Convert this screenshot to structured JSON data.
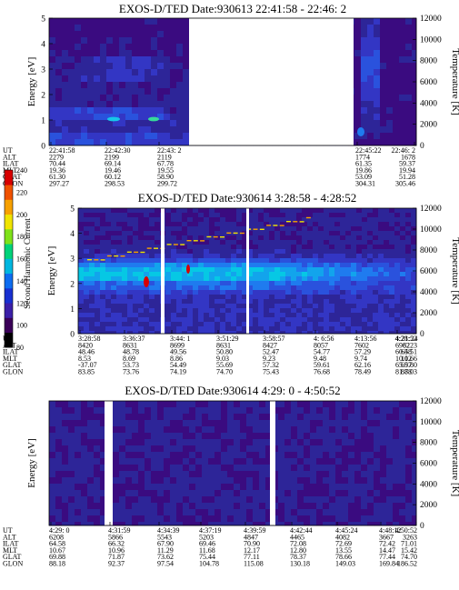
{
  "colorbar": {
    "label": "Second Harmonic Current",
    "ticks": [
      "240",
      "220",
      "200",
      "180",
      "160",
      "140",
      "120",
      "100",
      "80"
    ],
    "colors": [
      "#000000",
      "#3a0058",
      "#3b1fa8",
      "#1830d0",
      "#0d6cf0",
      "#00b7e0",
      "#00d37a",
      "#7fe21a",
      "#f0e400",
      "#f7a100",
      "#f05200",
      "#d80000"
    ]
  },
  "panels": [
    {
      "title": "EXOS-D/TED   Date:930613  22:41:58 - 22:46: 2",
      "ylabel": "Energy [eV]",
      "y2label": "Temperature [K]",
      "yticks": [
        "0",
        "1",
        "2",
        "3",
        "4",
        "5"
      ],
      "y2ticks": [
        "0",
        "2000",
        "4000",
        "6000",
        "8000",
        "10000",
        "12000"
      ],
      "row_labels": [
        "UT",
        "ALT",
        "ILAT",
        "MLT",
        "GLAT",
        "GLON"
      ],
      "columns": [
        {
          "ut": "22:41:58",
          "vals": [
            "2279",
            "70.44",
            "19.36",
            "61.30",
            "297.27"
          ]
        },
        {
          "ut": "22:42:30",
          "vals": [
            "2199",
            "69.14",
            "19.46",
            "60.12",
            "298.53"
          ]
        },
        {
          "ut": "22:43: 2",
          "vals": [
            "2119",
            "67.78",
            "19.55",
            "58.90",
            "299.72"
          ]
        },
        {
          "ut": "22:45:22",
          "vals": [
            "1774",
            "61.35",
            "19.86",
            "53.09",
            "304.31"
          ]
        },
        {
          "ut": "22:46: 2",
          "vals": [
            "1678",
            "59.37",
            "19.94",
            "51.28",
            "305.46"
          ]
        }
      ]
    },
    {
      "title": "EXOS-D/TED   Date:930614   3:28:58 - 4:28:52",
      "ylabel": "Energy [eV]",
      "y2label": "Temperature [K]",
      "yticks": [
        "0",
        "1",
        "2",
        "3",
        "4",
        "5"
      ],
      "y2ticks": [
        "0",
        "2000",
        "4000",
        "6000",
        "8000",
        "10000",
        "12000"
      ],
      "row_labels": [
        "UT",
        "ALT",
        "ILAT",
        "MLT",
        "GLAT",
        "GLON"
      ],
      "columns": [
        {
          "ut": "3:28:58",
          "vals": [
            "8420",
            "48.46",
            "8.53",
            "-37.07",
            "83.85"
          ]
        },
        {
          "ut": "3:36:37",
          "vals": [
            "8631",
            "48.78",
            "8.69",
            "53.73",
            "73.76"
          ]
        },
        {
          "ut": "3:44: 1",
          "vals": [
            "8699",
            "49.56",
            "8.86",
            "54.49",
            "74.19"
          ]
        },
        {
          "ut": "3:51:29",
          "vals": [
            "8631",
            "50.80",
            "9.03",
            "55.69",
            "74.70"
          ]
        },
        {
          "ut": "3:58:57",
          "vals": [
            "8427",
            "52.47",
            "9.23",
            "57.32",
            "75.43"
          ]
        },
        {
          "ut": "4: 6:56",
          "vals": [
            "8057",
            "54.77",
            "9.48",
            "59.61",
            "76.68"
          ]
        },
        {
          "ut": "4:13:56",
          "vals": [
            "7602",
            "57.29",
            "9.74",
            "62.16",
            "78.49"
          ]
        },
        {
          "ut": "4:21:24",
          "vals": [
            "6982",
            "60.58",
            "10.12",
            "65.57",
            "81.78"
          ]
        },
        {
          "ut": "4:28:52",
          "vals": [
            "6223",
            "64.51",
            "10.66",
            "69.80",
            "88.03"
          ]
        }
      ]
    },
    {
      "title": "EXOS-D/TED   Date:930614   4:29: 0 - 4:50:52",
      "ylabel": "Energy [eV]",
      "y2label": "Temperature [K]",
      "yticks": [],
      "y2ticks": [
        "0",
        "2000",
        "4000",
        "6000",
        "8000",
        "10000",
        "12000"
      ],
      "row_labels": [
        "UT",
        "ALT",
        "ILAT",
        "MLT",
        "GLAT",
        "GLON"
      ],
      "columns": [
        {
          "ut": "4:29: 0",
          "vals": [
            "6208",
            "64.58",
            "10.67",
            "69.88",
            "88.18"
          ]
        },
        {
          "ut": "4:31:59",
          "vals": [
            "5866",
            "66.32",
            "10.96",
            "71.87",
            "92.37"
          ]
        },
        {
          "ut": "4:34:39",
          "vals": [
            "5543",
            "67.90",
            "11.29",
            "73.62",
            "97.54"
          ]
        },
        {
          "ut": "4:37:19",
          "vals": [
            "5203",
            "69.46",
            "11.68",
            "75.44",
            "104.78"
          ]
        },
        {
          "ut": "4:39:59",
          "vals": [
            "4847",
            "70.90",
            "12.17",
            "77.11",
            "115.08"
          ]
        },
        {
          "ut": "4:42:44",
          "vals": [
            "4465",
            "72.08",
            "12.80",
            "78.37",
            "130.18"
          ]
        },
        {
          "ut": "4:45:24",
          "vals": [
            "4082",
            "72.69",
            "13.55",
            "78.66",
            "149.03"
          ]
        },
        {
          "ut": "4:48:12",
          "vals": [
            "3667",
            "72.42",
            "14.47",
            "77.44",
            "169.84"
          ]
        },
        {
          "ut": "4:50:52",
          "vals": [
            "3263",
            "71.01",
            "15.42",
            "74.70",
            "186.52"
          ]
        }
      ]
    }
  ],
  "chart_data": [
    {
      "type": "heatmap",
      "title": "EXOS-D/TED   Date:930613  22:41:58 - 22:46: 2",
      "ylabel": "Energy [eV]",
      "y2label": "Temperature [K]",
      "ylim": [
        0,
        5
      ],
      "y2lim": [
        0,
        12000
      ],
      "x_ticks": [
        "22:41:58",
        "22:42:30",
        "22:43: 2",
        "22:45:22",
        "22:46: 2"
      ],
      "notes": "data gap between 22:43:25 and 22:45:10; peak currents near 1 eV"
    },
    {
      "type": "heatmap",
      "title": "EXOS-D/TED   Date:930614   3:28:58 - 4:28:52",
      "ylabel": "Energy [eV]",
      "y2label": "Temperature [K]",
      "ylim": [
        0,
        5
      ],
      "y2lim": [
        0,
        12000
      ],
      "x_ticks": [
        "3:28:58",
        "3:36:37",
        "3:44: 1",
        "3:51:29",
        "3:58:57",
        "4: 6:56",
        "4:13:56",
        "4:21:24",
        "4:28:52"
      ],
      "notes": "intense band at 2-3 eV, weakening after 4:06"
    },
    {
      "type": "heatmap",
      "title": "EXOS-D/TED   Date:930614   4:29: 0 - 4:50:52",
      "ylabel": "Energy [eV]",
      "y2label": "Temperature [K]",
      "y2lim": [
        0,
        12000
      ],
      "x_ticks": [
        "4:29: 0",
        "4:31:59",
        "4:34:39",
        "4:37:19",
        "4:39:59",
        "4:42:44",
        "4:45:24",
        "4:48:12",
        "4:50:52"
      ],
      "notes": "weak, uniform signal"
    }
  ]
}
